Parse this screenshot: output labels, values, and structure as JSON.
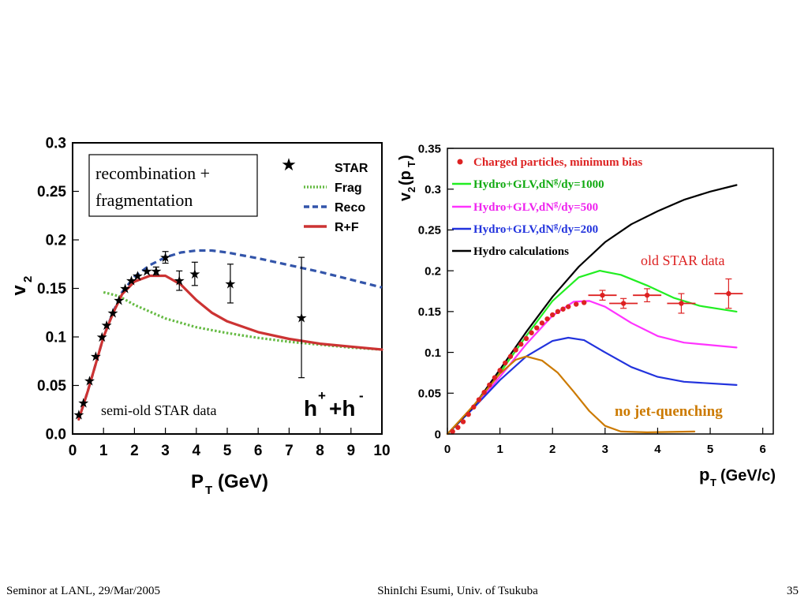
{
  "footer": {
    "left": "Seminor at LANL, 29/Mar/2005",
    "center": "ShinIchi Esumi, Univ. of Tsukuba",
    "right": "35"
  },
  "left_panel": {
    "box_line1": "recombination +",
    "box_line2": "fragmentation",
    "note": "semi-old STAR data",
    "species_base": "h",
    "species_plus": "+",
    "species_join": "+h",
    "species_minus": "-"
  },
  "right_panel": {
    "note_star": "old STAR data",
    "note_nojet": "no jet-quenching",
    "ylabel_main": "v",
    "ylabel_sub": "2",
    "ylabel_arg": "(p",
    "ylabel_argsub": "T",
    "ylabel_close": ")",
    "xlabel_main": "p",
    "xlabel_sub": "T",
    "xlabel_unit": "(GeV/c)",
    "legend_nojet_color": "#cc7a00"
  },
  "chart_data": [
    {
      "type": "line",
      "xlabel": "P",
      "xlabel_sub": "T",
      "xlabel_unit": "(GeV)",
      "ylabel": "v",
      "ylabel_sub": "2",
      "xlim": [
        0,
        10
      ],
      "ylim": [
        0,
        0.3
      ],
      "xticks": [
        "0",
        "1",
        "2",
        "3",
        "4",
        "5",
        "6",
        "7",
        "8",
        "9",
        "10"
      ],
      "yticks": [
        "0.0",
        "0.05",
        "0.1",
        "0.15",
        "0.2",
        "0.25",
        "0.3"
      ],
      "legend_position": "top-right",
      "series": [
        {
          "name": "STAR",
          "style": "points",
          "color": "#000000",
          "points": [
            [
              0.2,
              0.02,
              0.002
            ],
            [
              0.35,
              0.032,
              0.002
            ],
            [
              0.55,
              0.055,
              0.002
            ],
            [
              0.75,
              0.08,
              0.002
            ],
            [
              0.95,
              0.1,
              0.002
            ],
            [
              1.1,
              0.112,
              0.002
            ],
            [
              1.3,
              0.125,
              0.002
            ],
            [
              1.5,
              0.138,
              0.003
            ],
            [
              1.7,
              0.15,
              0.003
            ],
            [
              1.9,
              0.158,
              0.003
            ],
            [
              2.1,
              0.163,
              0.003
            ],
            [
              2.4,
              0.168,
              0.003
            ],
            [
              2.7,
              0.168,
              0.004
            ],
            [
              3.0,
              0.182,
              0.006
            ],
            [
              3.45,
              0.158,
              0.01
            ],
            [
              3.95,
              0.165,
              0.012
            ],
            [
              5.1,
              0.155,
              0.02
            ],
            [
              7.4,
              0.12,
              0.062
            ]
          ]
        },
        {
          "name": "Frag",
          "style": "dotted",
          "color": "#66bb44",
          "points": [
            [
              1.0,
              0.146
            ],
            [
              1.5,
              0.142
            ],
            [
              2.0,
              0.133
            ],
            [
              2.5,
              0.126
            ],
            [
              3.0,
              0.119
            ],
            [
              4.0,
              0.11
            ],
            [
              5.0,
              0.104
            ],
            [
              6.0,
              0.099
            ],
            [
              7.0,
              0.095
            ],
            [
              8.0,
              0.092
            ],
            [
              9.0,
              0.089
            ],
            [
              10.0,
              0.087
            ]
          ]
        },
        {
          "name": "Reco",
          "style": "dashed",
          "color": "#3355aa",
          "points": [
            [
              0.2,
              0.015
            ],
            [
              0.5,
              0.045
            ],
            [
              0.8,
              0.078
            ],
            [
              1.0,
              0.1
            ],
            [
              1.3,
              0.125
            ],
            [
              1.6,
              0.146
            ],
            [
              2.0,
              0.162
            ],
            [
              2.5,
              0.174
            ],
            [
              3.0,
              0.182
            ],
            [
              3.5,
              0.187
            ],
            [
              4.0,
              0.189
            ],
            [
              4.5,
              0.189
            ],
            [
              5.0,
              0.187
            ],
            [
              6.0,
              0.181
            ],
            [
              7.0,
              0.174
            ],
            [
              8.0,
              0.167
            ],
            [
              9.0,
              0.159
            ],
            [
              10.0,
              0.151
            ]
          ]
        },
        {
          "name": "R+F",
          "style": "solid",
          "color": "#cc3333",
          "points": [
            [
              0.2,
              0.015
            ],
            [
              0.5,
              0.045
            ],
            [
              0.8,
              0.078
            ],
            [
              1.0,
              0.1
            ],
            [
              1.3,
              0.124
            ],
            [
              1.6,
              0.144
            ],
            [
              2.0,
              0.157
            ],
            [
              2.5,
              0.163
            ],
            [
              3.0,
              0.163
            ],
            [
              3.5,
              0.154
            ],
            [
              4.0,
              0.138
            ],
            [
              4.5,
              0.125
            ],
            [
              5.0,
              0.116
            ],
            [
              6.0,
              0.105
            ],
            [
              7.0,
              0.098
            ],
            [
              8.0,
              0.093
            ],
            [
              9.0,
              0.09
            ],
            [
              10.0,
              0.087
            ]
          ]
        }
      ]
    },
    {
      "type": "line",
      "xlim": [
        0,
        6.2
      ],
      "ylim": [
        0,
        0.35
      ],
      "xticks": [
        "0",
        "1",
        "2",
        "3",
        "4",
        "5",
        "6"
      ],
      "yticks": [
        "0",
        "0.05",
        "0.1",
        "0.15",
        "0.2",
        "0.25",
        "0.3",
        "0.35"
      ],
      "legend_position": "top-left",
      "series": [
        {
          "name": "Charged particles, minimum bias",
          "style": "points",
          "color": "#dd2222",
          "points": [
            [
              0.1,
              0.003,
              0
            ],
            [
              0.2,
              0.008,
              0
            ],
            [
              0.3,
              0.015,
              0
            ],
            [
              0.4,
              0.024,
              0
            ],
            [
              0.5,
              0.033,
              0
            ],
            [
              0.6,
              0.042,
              0
            ],
            [
              0.7,
              0.051,
              0
            ],
            [
              0.8,
              0.06,
              0
            ],
            [
              0.9,
              0.069,
              0
            ],
            [
              1.0,
              0.078,
              0
            ],
            [
              1.1,
              0.087,
              0
            ],
            [
              1.2,
              0.095,
              0
            ],
            [
              1.3,
              0.103,
              0
            ],
            [
              1.4,
              0.11,
              0
            ],
            [
              1.5,
              0.117,
              0
            ],
            [
              1.6,
              0.124,
              0
            ],
            [
              1.7,
              0.13,
              0
            ],
            [
              1.8,
              0.136,
              0
            ],
            [
              1.9,
              0.141,
              0
            ],
            [
              2.0,
              0.146,
              0
            ],
            [
              2.1,
              0.15,
              0
            ],
            [
              2.2,
              0.153,
              0
            ],
            [
              2.3,
              0.156,
              0
            ],
            [
              2.45,
              0.159,
              0
            ],
            [
              2.6,
              0.161,
              0
            ],
            [
              2.95,
              0.17,
              0.006
            ],
            [
              3.35,
              0.16,
              0.006
            ],
            [
              3.8,
              0.17,
              0.008
            ],
            [
              4.45,
              0.16,
              0.012
            ],
            [
              5.35,
              0.172,
              0.018
            ]
          ]
        },
        {
          "name": "Hydro+GLV,dN^g/dy=1000",
          "style": "solid",
          "color": "#22ee22",
          "points": [
            [
              0.0,
              0.0
            ],
            [
              0.5,
              0.033
            ],
            [
              1.0,
              0.075
            ],
            [
              1.5,
              0.12
            ],
            [
              2.0,
              0.163
            ],
            [
              2.5,
              0.192
            ],
            [
              2.9,
              0.2
            ],
            [
              3.3,
              0.195
            ],
            [
              3.8,
              0.182
            ],
            [
              4.3,
              0.167
            ],
            [
              4.8,
              0.157
            ],
            [
              5.5,
              0.15
            ]
          ]
        },
        {
          "name": "Hydro+GLV,dN^g/dy=500",
          "style": "solid",
          "color": "#ff33ff",
          "points": [
            [
              0.0,
              0.0
            ],
            [
              0.5,
              0.032
            ],
            [
              1.0,
              0.07
            ],
            [
              1.5,
              0.11
            ],
            [
              2.0,
              0.145
            ],
            [
              2.4,
              0.162
            ],
            [
              2.7,
              0.163
            ],
            [
              3.0,
              0.156
            ],
            [
              3.5,
              0.136
            ],
            [
              4.0,
              0.12
            ],
            [
              4.5,
              0.112
            ],
            [
              5.5,
              0.106
            ]
          ]
        },
        {
          "name": "Hydro+GLV,dN^g/dy=200",
          "style": "solid",
          "color": "#2233dd",
          "points": [
            [
              0.0,
              0.0
            ],
            [
              0.5,
              0.032
            ],
            [
              1.0,
              0.066
            ],
            [
              1.5,
              0.095
            ],
            [
              2.0,
              0.114
            ],
            [
              2.3,
              0.118
            ],
            [
              2.6,
              0.115
            ],
            [
              3.0,
              0.1
            ],
            [
              3.5,
              0.082
            ],
            [
              4.0,
              0.07
            ],
            [
              4.5,
              0.064
            ],
            [
              5.5,
              0.06
            ]
          ]
        },
        {
          "name": "Hydro calculations",
          "style": "solid",
          "color": "#000000",
          "points": [
            [
              0.0,
              0.0
            ],
            [
              0.5,
              0.034
            ],
            [
              1.0,
              0.079
            ],
            [
              1.5,
              0.125
            ],
            [
              2.0,
              0.168
            ],
            [
              2.5,
              0.205
            ],
            [
              3.0,
              0.235
            ],
            [
              3.5,
              0.257
            ],
            [
              4.0,
              0.273
            ],
            [
              4.5,
              0.287
            ],
            [
              5.0,
              0.297
            ],
            [
              5.5,
              0.305
            ]
          ]
        },
        {
          "name": "",
          "style": "solid",
          "color": "#cc7a00",
          "points": [
            [
              0.0,
              0.0
            ],
            [
              0.5,
              0.035
            ],
            [
              1.0,
              0.074
            ],
            [
              1.3,
              0.091
            ],
            [
              1.5,
              0.095
            ],
            [
              1.8,
              0.09
            ],
            [
              2.1,
              0.075
            ],
            [
              2.4,
              0.052
            ],
            [
              2.7,
              0.028
            ],
            [
              3.0,
              0.01
            ],
            [
              3.3,
              0.003
            ],
            [
              3.8,
              0.002
            ],
            [
              4.7,
              0.003
            ]
          ]
        }
      ]
    }
  ]
}
